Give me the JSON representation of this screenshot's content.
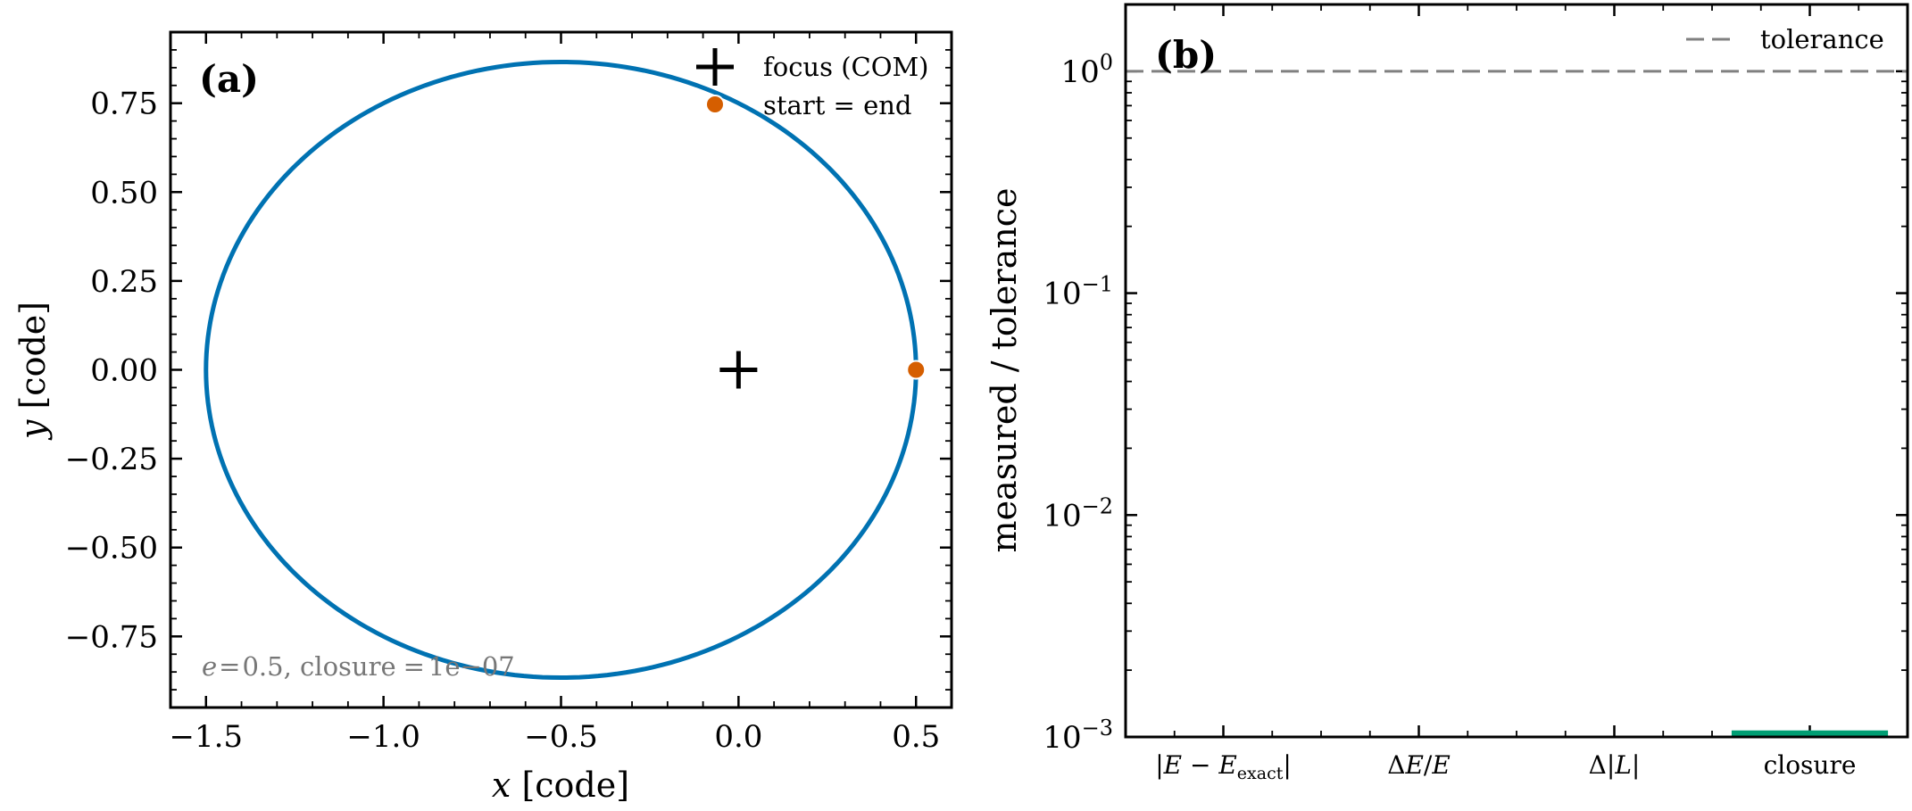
{
  "chart_data": [
    {
      "type": "line",
      "panel_label": "(a)",
      "xlabel": "x [code]",
      "ylabel": "y [code]",
      "xlim": [
        -1.6,
        0.6
      ],
      "ylim": [
        -0.95,
        0.95
      ],
      "xticks": [
        -1.5,
        -1.0,
        -0.5,
        0.0,
        0.5
      ],
      "xtick_labels": [
        "−1.5",
        "−1.0",
        "−0.5",
        "0.0",
        "0.5"
      ],
      "yticks": [
        -0.75,
        -0.5,
        -0.25,
        0.0,
        0.25,
        0.5,
        0.75
      ],
      "ytick_labels": [
        "−0.75",
        "−0.50",
        "−0.25",
        "0.00",
        "0.25",
        "0.50",
        "0.75"
      ],
      "orbit": {
        "eccentricity": 0.5,
        "semi_major_axis": 1.0,
        "focus": [
          0.0,
          0.0
        ],
        "periapsis": [
          0.5,
          0.0
        ],
        "x_range": [
          -1.5,
          0.5
        ],
        "y_range": [
          -0.866,
          0.866
        ],
        "color": "#0072b2"
      },
      "focus_marker": {
        "x": 0.0,
        "y": 0.0,
        "color": "#000000"
      },
      "start_end_markers": [
        {
          "x": 0.5,
          "y": 0.0
        }
      ],
      "start_end_color": "#d55e00",
      "legend": {
        "position": "upper right",
        "entries": [
          {
            "label": "focus (COM)",
            "marker": "plus",
            "color": "#000000"
          },
          {
            "label": "start = end",
            "marker": "circle",
            "color": "#d55e00"
          }
        ]
      },
      "annotation": {
        "prefix": "e",
        "eq": "=",
        "e_value": "0.5",
        "suffix": ", closure",
        "closure_value": "1e−07"
      },
      "grid": false
    },
    {
      "type": "bar",
      "panel_label": "(b)",
      "ylabel": "measured / tolerance",
      "yscale": "log",
      "ylim": [
        0.001,
        2.0
      ],
      "yticks": [
        0.001,
        0.01,
        0.1,
        1
      ],
      "ytick_labels": [
        {
          "base": "10",
          "exp": "−3"
        },
        {
          "base": "10",
          "exp": "−2"
        },
        {
          "base": "10",
          "exp": "−1"
        },
        {
          "base": "10",
          "exp": "0"
        }
      ],
      "categories": [
        {
          "key": "energy_error",
          "parts": [
            "|",
            "E",
            " − ",
            "E",
            "exact",
            "|"
          ]
        },
        {
          "key": "energy_drift",
          "parts": [
            "Δ",
            "E",
            "/",
            "E"
          ]
        },
        {
          "key": "ang_mom_drift",
          "parts": [
            "Δ",
            "|",
            "L",
            "|"
          ]
        },
        {
          "key": "closure",
          "parts": [
            "closure"
          ]
        }
      ],
      "values": [
        0,
        0,
        0,
        0.00107
      ],
      "bar_color": "#009e73",
      "tolerance": {
        "value": 1,
        "label": "tolerance",
        "color": "#808080",
        "style": "dashed"
      },
      "legend": {
        "position": "upper right",
        "entries": [
          {
            "label": "tolerance",
            "line": "dashed",
            "color": "#808080"
          }
        ]
      },
      "grid": false
    }
  ]
}
